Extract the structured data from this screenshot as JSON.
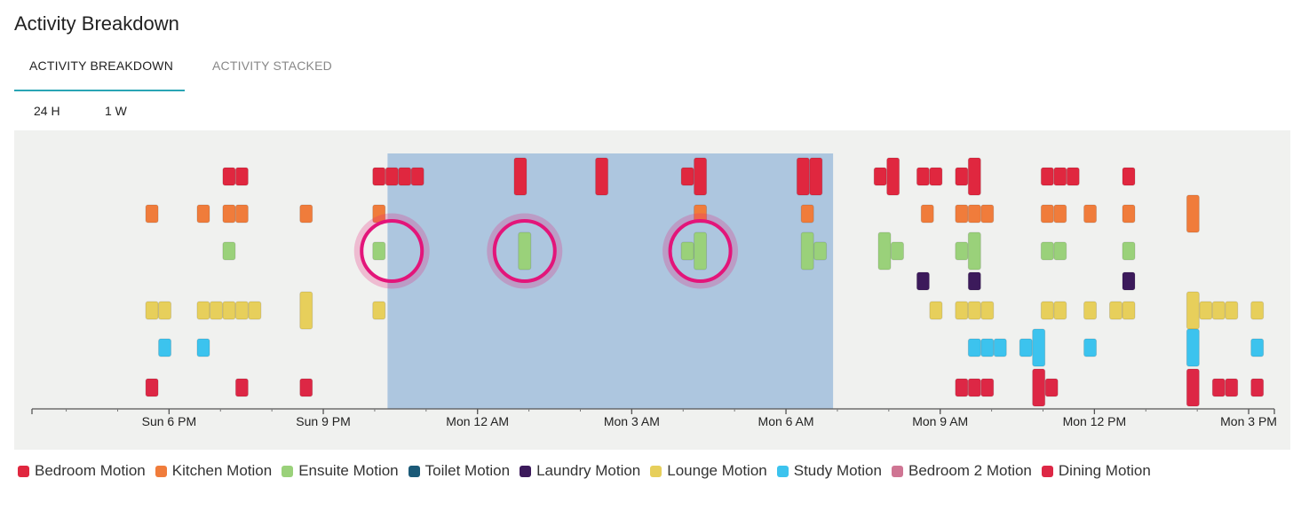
{
  "header": {
    "title": "Activity Breakdown"
  },
  "tabs": [
    {
      "label": "ACTIVITY BREAKDOWN",
      "active": true
    },
    {
      "label": "ACTIVITY STACKED",
      "active": false
    }
  ],
  "ranges": [
    "24 H",
    "1 W"
  ],
  "chart_data": {
    "type": "scatter",
    "x_unit": "hours (Sun 6 PM → Mon 3 PM)",
    "xlim": [
      "Sun 3:20 PM",
      "Mon 3:30 PM"
    ],
    "x_ticks": [
      "Sun 6 PM",
      "Sun 9 PM",
      "Mon 12 AM",
      "Mon 3 AM",
      "Mon 6 AM",
      "Mon 9 AM",
      "Mon 12 PM",
      "Mon 3 PM"
    ],
    "night_band": {
      "start": "Sun 10:15 PM",
      "end": "Mon 6:55 AM",
      "color": "#adc6df"
    },
    "highlight_times": [
      "Sun 10:20 PM",
      "Mon 12:55 AM",
      "Mon 4:20 AM"
    ],
    "highlight_row": "Ensuite Motion",
    "series": [
      {
        "name": "Bedroom Motion",
        "color": "#e0273f",
        "events": [
          [
            "Sun 7:10 PM",
            1
          ],
          [
            "Sun 7:25 PM",
            1
          ],
          [
            "Sun 10:05 PM",
            1
          ],
          [
            "Sun 10:20 PM",
            1
          ],
          [
            "Sun 10:35 PM",
            1
          ],
          [
            "Sun 10:50 PM",
            1
          ],
          [
            "Mon 12:50 AM",
            2
          ],
          [
            "Mon 2:25 AM",
            2
          ],
          [
            "Mon 4:05 AM",
            1
          ],
          [
            "Mon 4:20 AM",
            2
          ],
          [
            "Mon 6:20 AM",
            2
          ],
          [
            "Mon 6:35 AM",
            2
          ],
          [
            "Mon 7:50 AM",
            1
          ],
          [
            "Mon 8:05 AM",
            2
          ],
          [
            "Mon 8:40 AM",
            1
          ],
          [
            "Mon 8:55 AM",
            1
          ],
          [
            "Mon 9:25 AM",
            1
          ],
          [
            "Mon 9:40 AM",
            2
          ],
          [
            "Mon 11:05 AM",
            1
          ],
          [
            "Mon 11:20 AM",
            1
          ],
          [
            "Mon 11:35 AM",
            1
          ],
          [
            "Mon 12:40 PM",
            1
          ]
        ]
      },
      {
        "name": "Kitchen Motion",
        "color": "#f07c3b",
        "events": [
          [
            "Sun 5:40 PM",
            1
          ],
          [
            "Sun 6:40 PM",
            1
          ],
          [
            "Sun 7:10 PM",
            1
          ],
          [
            "Sun 7:25 PM",
            1
          ],
          [
            "Sun 8:40 PM",
            1
          ],
          [
            "Sun 10:05 PM",
            1
          ],
          [
            "Mon 4:20 AM",
            1
          ],
          [
            "Mon 6:25 AM",
            1
          ],
          [
            "Mon 8:45 AM",
            1
          ],
          [
            "Mon 9:25 AM",
            1
          ],
          [
            "Mon 9:40 AM",
            1
          ],
          [
            "Mon 9:55 AM",
            1
          ],
          [
            "Mon 11:05 AM",
            1
          ],
          [
            "Mon 11:20 AM",
            1
          ],
          [
            "Mon 11:55 AM",
            1
          ],
          [
            "Mon 12:40 PM",
            1
          ],
          [
            "Mon 1:55 PM",
            2
          ]
        ]
      },
      {
        "name": "Ensuite Motion",
        "color": "#9ad17a",
        "events": [
          [
            "Sun 7:10 PM",
            1
          ],
          [
            "Sun 10:05 PM",
            1
          ],
          [
            "Mon 12:55 AM",
            2
          ],
          [
            "Mon 4:05 AM",
            1
          ],
          [
            "Mon 4:20 AM",
            2
          ],
          [
            "Mon 6:25 AM",
            2
          ],
          [
            "Mon 6:40 AM",
            1
          ],
          [
            "Mon 7:55 AM",
            2
          ],
          [
            "Mon 8:10 AM",
            1
          ],
          [
            "Mon 9:25 AM",
            1
          ],
          [
            "Mon 9:40 AM",
            2
          ],
          [
            "Mon 11:05 AM",
            1
          ],
          [
            "Mon 11:20 AM",
            1
          ],
          [
            "Mon 12:40 PM",
            1
          ]
        ]
      },
      {
        "name": "Toilet Motion",
        "color": "#1b5a78",
        "events": []
      },
      {
        "name": "Laundry Motion",
        "color": "#3c1a5b",
        "events": [
          [
            "Mon 8:40 AM",
            1
          ],
          [
            "Mon 9:40 AM",
            1
          ],
          [
            "Mon 12:40 PM",
            1
          ]
        ]
      },
      {
        "name": "Lounge Motion",
        "color": "#e7cf5b",
        "events": [
          [
            "Sun 5:40 PM",
            1
          ],
          [
            "Sun 5:55 PM",
            1
          ],
          [
            "Sun 6:40 PM",
            1
          ],
          [
            "Sun 6:55 PM",
            1
          ],
          [
            "Sun 7:10 PM",
            1
          ],
          [
            "Sun 7:25 PM",
            1
          ],
          [
            "Sun 7:40 PM",
            1
          ],
          [
            "Sun 8:40 PM",
            2
          ],
          [
            "Sun 10:05 PM",
            1
          ],
          [
            "Mon 8:55 AM",
            1
          ],
          [
            "Mon 9:25 AM",
            1
          ],
          [
            "Mon 9:40 AM",
            1
          ],
          [
            "Mon 9:55 AM",
            1
          ],
          [
            "Mon 11:05 AM",
            1
          ],
          [
            "Mon 11:20 AM",
            1
          ],
          [
            "Mon 11:55 AM",
            1
          ],
          [
            "Mon 12:25 PM",
            1
          ],
          [
            "Mon 12:40 PM",
            1
          ],
          [
            "Mon 1:55 PM",
            2
          ],
          [
            "Mon 2:10 PM",
            1
          ],
          [
            "Mon 2:25 PM",
            1
          ],
          [
            "Mon 2:40 PM",
            1
          ],
          [
            "Mon 3:10 PM",
            1
          ]
        ]
      },
      {
        "name": "Study Motion",
        "color": "#3cc3ee",
        "events": [
          [
            "Sun 5:55 PM",
            1
          ],
          [
            "Sun 6:40 PM",
            1
          ],
          [
            "Mon 9:40 AM",
            1
          ],
          [
            "Mon 9:55 AM",
            1
          ],
          [
            "Mon 10:10 AM",
            1
          ],
          [
            "Mon 10:40 AM",
            1
          ],
          [
            "Mon 10:55 AM",
            2
          ],
          [
            "Mon 11:55 AM",
            1
          ],
          [
            "Mon 1:55 PM",
            2
          ],
          [
            "Mon 3:10 PM",
            1
          ]
        ]
      },
      {
        "name": "Bedroom 2 Motion",
        "color": "#cf7593",
        "events": []
      },
      {
        "name": "Dining Motion",
        "color": "#dd2745",
        "events": [
          [
            "Sun 5:40 PM",
            1
          ],
          [
            "Sun 7:25 PM",
            1
          ],
          [
            "Sun 8:40 PM",
            1
          ],
          [
            "Mon 9:25 AM",
            1
          ],
          [
            "Mon 9:40 AM",
            1
          ],
          [
            "Mon 9:55 AM",
            1
          ],
          [
            "Mon 10:55 AM",
            2
          ],
          [
            "Mon 11:10 AM",
            1
          ],
          [
            "Mon 1:55 PM",
            2
          ],
          [
            "Mon 2:25 PM",
            1
          ],
          [
            "Mon 2:40 PM",
            1
          ],
          [
            "Mon 3:10 PM",
            1
          ]
        ]
      }
    ]
  }
}
